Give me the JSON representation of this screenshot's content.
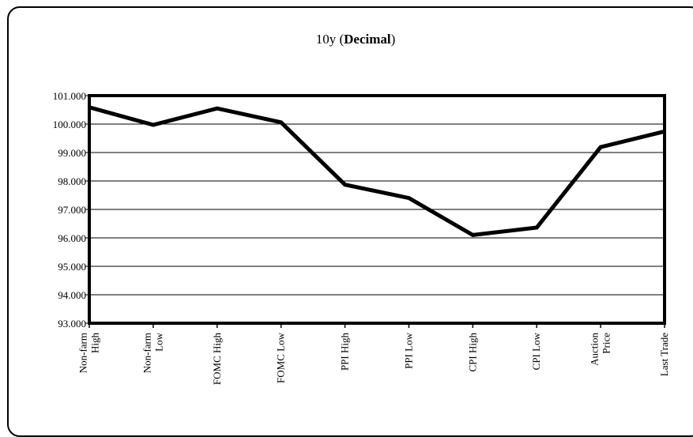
{
  "chart_data": {
    "type": "line",
    "title": "10y (Decimal)",
    "title_plain": "10y (",
    "title_bold": "Decimal",
    "title_close": ")",
    "xlabel": "",
    "ylabel": "",
    "categories": [
      [
        "Non-farm",
        "High"
      ],
      [
        "Non-farm",
        "Low"
      ],
      [
        "FOMC High"
      ],
      [
        "FOMC Low"
      ],
      [
        "PPI High"
      ],
      [
        "PPI Low"
      ],
      [
        "CPI High"
      ],
      [
        "CPI Low"
      ],
      [
        "Auction",
        "Price"
      ],
      [
        "Last Trade"
      ]
    ],
    "series": [
      {
        "values": [
          100.59,
          99.97,
          100.55,
          100.06,
          97.87,
          97.4,
          96.1,
          96.36,
          99.19,
          99.74
        ]
      }
    ],
    "ylim": [
      93.0,
      101.0
    ],
    "y_ticks": [
      "93.000",
      "94.000",
      "95.000",
      "96.000",
      "97.000",
      "98.000",
      "99.000",
      "100.000",
      "101.000"
    ],
    "grid": true,
    "legend": "none",
    "colors": {
      "line": "#000000",
      "grid": "#000000",
      "background": "#ffffff"
    }
  }
}
